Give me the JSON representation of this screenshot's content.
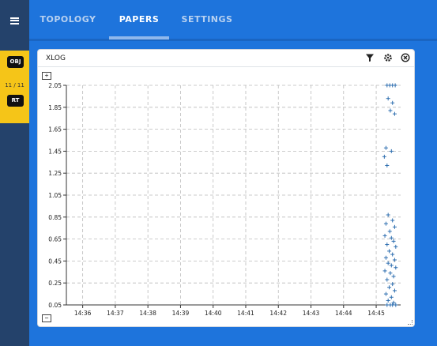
{
  "nav": {
    "tabs": [
      {
        "label": "TOPOLOGY",
        "active": false
      },
      {
        "label": "PAPERS",
        "active": true
      },
      {
        "label": "SETTINGS",
        "active": false
      }
    ]
  },
  "sidebar": {
    "obj_label": "OBJ",
    "obj_count": "11 / 11",
    "rt_label": "RT"
  },
  "panel": {
    "title": "XLOG",
    "zoom_in": "+",
    "zoom_out": "−"
  },
  "colors": {
    "accent": "#1e74dc",
    "sidebar": "#24426b",
    "highlight": "#f5c518",
    "points": "#2f6fb0"
  },
  "chart_data": {
    "type": "scatter",
    "title": "",
    "xlabel": "",
    "ylabel": "",
    "x_ticks": [
      "14:36",
      "14:37",
      "14:38",
      "14:39",
      "14:40",
      "14:41",
      "14:42",
      "14:43",
      "14:44",
      "14:45"
    ],
    "y_ticks": [
      "0.05",
      "0.25",
      "0.45",
      "0.65",
      "0.85",
      "1.05",
      "1.25",
      "1.45",
      "1.65",
      "1.85",
      "2.05"
    ],
    "ylim": [
      0.05,
      2.05
    ],
    "grid": true,
    "series": [
      {
        "marker": "+",
        "points": [
          [
            "14:45:20",
            2.05
          ],
          [
            "14:45:25",
            2.05
          ],
          [
            "14:45:30",
            2.05
          ],
          [
            "14:45:35",
            2.05
          ],
          [
            "14:45:22",
            1.93
          ],
          [
            "14:45:30",
            1.89
          ],
          [
            "14:45:26",
            1.82
          ],
          [
            "14:45:34",
            1.79
          ],
          [
            "14:45:18",
            1.48
          ],
          [
            "14:45:28",
            1.45
          ],
          [
            "14:45:15",
            1.4
          ],
          [
            "14:45:20",
            1.32
          ],
          [
            "14:45:22",
            0.87
          ],
          [
            "14:45:30",
            0.82
          ],
          [
            "14:45:18",
            0.79
          ],
          [
            "14:45:34",
            0.76
          ],
          [
            "14:45:25",
            0.72
          ],
          [
            "14:45:16",
            0.68
          ],
          [
            "14:45:28",
            0.66
          ],
          [
            "14:45:32",
            0.63
          ],
          [
            "14:45:20",
            0.6
          ],
          [
            "14:45:36",
            0.58
          ],
          [
            "14:45:24",
            0.54
          ],
          [
            "14:45:30",
            0.51
          ],
          [
            "14:45:18",
            0.48
          ],
          [
            "14:45:34",
            0.46
          ],
          [
            "14:45:22",
            0.43
          ],
          [
            "14:45:28",
            0.41
          ],
          [
            "14:45:36",
            0.39
          ],
          [
            "14:45:16",
            0.36
          ],
          [
            "14:45:26",
            0.34
          ],
          [
            "14:45:32",
            0.31
          ],
          [
            "14:45:20",
            0.28
          ],
          [
            "14:45:30",
            0.24
          ],
          [
            "14:45:24",
            0.21
          ],
          [
            "14:45:34",
            0.18
          ],
          [
            "14:45:18",
            0.15
          ],
          [
            "14:45:28",
            0.12
          ],
          [
            "14:45:22",
            0.09
          ],
          [
            "14:45:32",
            0.07
          ],
          [
            "14:45:20",
            0.05
          ],
          [
            "14:45:26",
            0.05
          ],
          [
            "14:45:30",
            0.05
          ],
          [
            "14:45:36",
            0.05
          ]
        ]
      }
    ]
  }
}
